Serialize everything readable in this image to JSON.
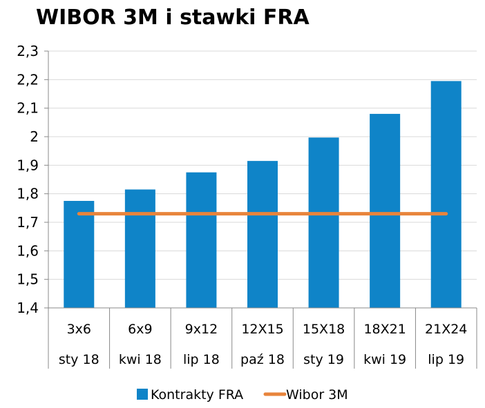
{
  "chart_data": {
    "type": "bar",
    "title": "WIBOR 3M i stawki FRA",
    "xlabel": "",
    "ylabel": "",
    "ylim": [
      1.4,
      2.3
    ],
    "yticks": [
      "1,4",
      "1,5",
      "1,6",
      "1,7",
      "1,8",
      "1,9",
      "2",
      "2,1",
      "2,2",
      "2,3"
    ],
    "categories": [
      {
        "top": "3x6",
        "bottom": "sty 18"
      },
      {
        "top": "6x9",
        "bottom": "kwi 18"
      },
      {
        "top": "9x12",
        "bottom": "lip 18"
      },
      {
        "top": "12X15",
        "bottom": "paź 18"
      },
      {
        "top": "15X18",
        "bottom": "sty 19"
      },
      {
        "top": "18X21",
        "bottom": "kwi 19"
      },
      {
        "top": "21X24",
        "bottom": "lip 19"
      }
    ],
    "series": [
      {
        "name": "Kontrakty FRA",
        "type": "bar",
        "color": "#0F84C8",
        "values": [
          1.775,
          1.815,
          1.875,
          1.915,
          1.997,
          2.08,
          2.195
        ]
      },
      {
        "name": "Wibor 3M",
        "type": "line",
        "color": "#E8843C",
        "values": [
          1.73,
          1.73,
          1.73,
          1.73,
          1.73,
          1.73,
          1.73
        ]
      }
    ],
    "grid": true,
    "legend": "bottom"
  }
}
